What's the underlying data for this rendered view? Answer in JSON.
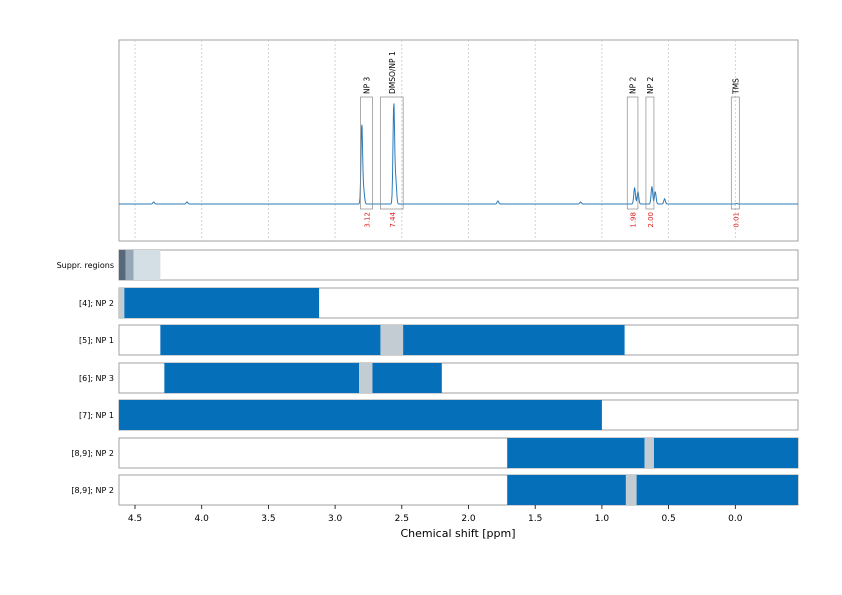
{
  "chart_data": {
    "type": "line",
    "xlabel": "Chemical shift [ppm]",
    "x_reversed": true,
    "xlim": [
      4.62,
      -0.47
    ],
    "x_ticks": [
      "4.5",
      "4.0",
      "3.5",
      "3.0",
      "2.5",
      "2.0",
      "1.5",
      "1.0",
      "0.5",
      "0.0"
    ],
    "x_tick_values": [
      4.5,
      4.0,
      3.5,
      3.0,
      2.5,
      2.0,
      1.5,
      1.0,
      0.5,
      0.0
    ],
    "grid": true,
    "colors": {
      "spectrum": "#2b7bba",
      "bar": "#0570b9",
      "gap": "#c3ccd3",
      "integral": "#dd2222",
      "frame": "#a0a0a0"
    },
    "spectrum": {
      "baseline_peaks": [
        {
          "ppm": 4.36,
          "height": 0.02
        },
        {
          "ppm": 4.11,
          "height": 0.02
        },
        {
          "ppm": 1.78,
          "height": 0.03
        },
        {
          "ppm": 1.16,
          "height": 0.02
        },
        {
          "ppm": 0.53,
          "height": 0.05
        }
      ],
      "labeled_peaks": [
        {
          "ppm": 2.8,
          "height": 0.78
        },
        {
          "ppm": 2.785,
          "height": 0.12
        },
        {
          "ppm": 2.56,
          "height": 0.98
        },
        {
          "ppm": 2.545,
          "height": 0.22
        },
        {
          "ppm": 0.755,
          "height": 0.16
        },
        {
          "ppm": 0.73,
          "height": 0.12
        },
        {
          "ppm": 0.625,
          "height": 0.17
        },
        {
          "ppm": 0.6,
          "height": 0.12
        },
        {
          "ppm": -0.01,
          "height": 0.005
        }
      ]
    },
    "regions": [
      {
        "label": "NP 3",
        "from": 2.81,
        "to": 2.72,
        "integral": "3.12"
      },
      {
        "label": "DMSO/NP 1",
        "from": 2.66,
        "to": 2.49,
        "integral": "7.44"
      },
      {
        "label": "NP 2",
        "from": 0.81,
        "to": 0.73,
        "integral": "1.98"
      },
      {
        "label": "NP 2",
        "from": 0.67,
        "to": 0.61,
        "integral": "2.00"
      },
      {
        "label": "TMS",
        "from": 0.03,
        "to": -0.03,
        "integral": "0.01"
      }
    ],
    "tracks": [
      {
        "label": "Suppr. regions",
        "bars": [
          {
            "from": 4.62,
            "to": 4.57,
            "color": "#56687a"
          },
          {
            "from": 4.57,
            "to": 4.51,
            "color": "#96a8b6"
          },
          {
            "from": 4.51,
            "to": 4.31,
            "color": "#d4dee5"
          }
        ]
      },
      {
        "label": "[4]; NP 2",
        "bars": [
          {
            "from": 4.62,
            "to": 4.58,
            "color": "#c3ccd3"
          },
          {
            "from": 4.58,
            "to": 3.12,
            "color": "#0570b9"
          }
        ]
      },
      {
        "label": "[5]; NP 1",
        "bars": [
          {
            "from": 4.31,
            "to": 2.66,
            "color": "#0570b9"
          },
          {
            "from": 2.66,
            "to": 2.49,
            "color": "#c3ccd3"
          },
          {
            "from": 2.49,
            "to": 0.83,
            "color": "#0570b9"
          }
        ]
      },
      {
        "label": "[6]; NP 3",
        "bars": [
          {
            "from": 4.28,
            "to": 2.82,
            "color": "#0570b9"
          },
          {
            "from": 2.82,
            "to": 2.72,
            "color": "#c3ccd3"
          },
          {
            "from": 2.72,
            "to": 2.2,
            "color": "#0570b9"
          }
        ]
      },
      {
        "label": "[7]; NP 1",
        "bars": [
          {
            "from": 4.62,
            "to": 1.0,
            "color": "#0570b9"
          }
        ]
      },
      {
        "label": "[8,9]; NP 2",
        "bars": [
          {
            "from": 1.71,
            "to": 0.68,
            "color": "#0570b9"
          },
          {
            "from": 0.68,
            "to": 0.61,
            "color": "#c3ccd3"
          },
          {
            "from": 0.61,
            "to": -0.47,
            "color": "#0570b9"
          }
        ]
      },
      {
        "label": "[8,9]; NP 2",
        "bars": [
          {
            "from": 1.71,
            "to": 0.82,
            "color": "#0570b9"
          },
          {
            "from": 0.82,
            "to": 0.74,
            "color": "#c3ccd3"
          },
          {
            "from": 0.74,
            "to": -0.47,
            "color": "#0570b9"
          }
        ]
      }
    ]
  }
}
